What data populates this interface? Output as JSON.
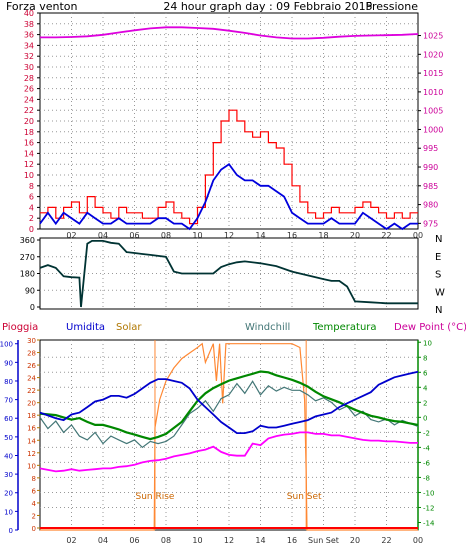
{
  "header": {
    "left_label": "Forza venton",
    "title": "24 hour graph day : 09 Febbraio 2015",
    "right_label": "Pressione"
  },
  "colors": {
    "wind": "#ff0000",
    "wind_avg": "#0000dd",
    "pressure": "#dd00dd",
    "direction": "#003333",
    "humidity": "#0000cc",
    "solar": "#ff8833",
    "windchill": "#447777",
    "temperature": "#008800",
    "dewpoint": "#ff00ff",
    "rain": "#ff0000",
    "grid": "#999999",
    "green_axis": "#008800",
    "blue_axis": "#0000cc",
    "red_axis": "#cc0033",
    "magenta_axis": "#cc0099"
  },
  "chart_data": [
    {
      "id": "wind-pressure",
      "type": "line",
      "x_ticks": [
        "02",
        "04",
        "06",
        "08",
        "10",
        "12",
        "14",
        "16",
        "18",
        "20",
        "22",
        "00"
      ],
      "y_left_ticks": [
        "0",
        "2",
        "4",
        "6",
        "8",
        "10",
        "12",
        "14",
        "16",
        "18",
        "20",
        "22",
        "24",
        "26",
        "28",
        "30",
        "32",
        "34",
        "36",
        "38",
        "40"
      ],
      "y_left_range": [
        0,
        40
      ],
      "y_right_ticks": [
        "975",
        "980",
        "985",
        "990",
        "995",
        "1000",
        "1005",
        "1010",
        "1015",
        "1020",
        "1025"
      ],
      "y_right_range": [
        973.5,
        1031
      ],
      "series": [
        {
          "key": "gust",
          "axis": "left",
          "x": [
            0,
            0.5,
            1,
            1.5,
            2,
            2.5,
            3,
            3.5,
            4,
            4.5,
            5,
            5.5,
            6,
            6.5,
            7,
            7.5,
            8,
            8.5,
            9,
            9.5,
            10,
            10.5,
            11,
            11.5,
            12,
            12.5,
            13,
            13.5,
            14,
            14.5,
            15,
            15.5,
            16,
            16.5,
            17,
            17.5,
            18,
            18.5,
            19,
            19.5,
            20,
            20.5,
            21,
            21.5,
            22,
            22.5,
            23,
            23.5,
            24
          ],
          "values": [
            3,
            4,
            2,
            4,
            5,
            3,
            6,
            4,
            3,
            2,
            4,
            3,
            3,
            2,
            2,
            4,
            5,
            3,
            2,
            1,
            4,
            10,
            16,
            20,
            22,
            20,
            18,
            17,
            18,
            16,
            15,
            12,
            8,
            5,
            3,
            2,
            3,
            4,
            3,
            3,
            4,
            5,
            4,
            3,
            2,
            3,
            2,
            3,
            3
          ]
        },
        {
          "key": "avg",
          "axis": "left",
          "x": [
            0,
            0.5,
            1,
            1.5,
            2,
            2.5,
            3,
            3.5,
            4,
            4.5,
            5,
            5.5,
            6,
            6.5,
            7,
            7.5,
            8,
            8.5,
            9,
            9.5,
            10,
            10.5,
            11,
            11.5,
            12,
            12.5,
            13,
            13.5,
            14,
            14.5,
            15,
            15.5,
            16,
            16.5,
            17,
            17.5,
            18,
            18.5,
            19,
            19.5,
            20,
            20.5,
            21,
            21.5,
            22,
            22.5,
            23,
            23.5,
            24
          ],
          "values": [
            1,
            3,
            1,
            3,
            2,
            1,
            3,
            2,
            1,
            1,
            2,
            1,
            1,
            1,
            1,
            2,
            2,
            1,
            1,
            0,
            2,
            5,
            9,
            11,
            12,
            10,
            9,
            9,
            8,
            8,
            7,
            6,
            3,
            2,
            1,
            1,
            1,
            2,
            1,
            1,
            1,
            3,
            2,
            1,
            0,
            1,
            0,
            1,
            1
          ]
        },
        {
          "key": "pressure",
          "axis": "right",
          "x": [
            0,
            1,
            2,
            3,
            4,
            5,
            6,
            7,
            8,
            9,
            10,
            11,
            12,
            13,
            14,
            15,
            16,
            17,
            18,
            19,
            20,
            21,
            22,
            23,
            24
          ],
          "values": [
            1024.5,
            1024.5,
            1024.6,
            1024.8,
            1025.2,
            1025.8,
            1026.4,
            1026.9,
            1027.2,
            1027.2,
            1027.0,
            1026.8,
            1026.3,
            1025.7,
            1025.0,
            1024.5,
            1024.2,
            1024.2,
            1024.4,
            1024.7,
            1024.9,
            1025.0,
            1025.1,
            1025.2,
            1025.4
          ]
        }
      ]
    },
    {
      "id": "wind-direction",
      "type": "line",
      "y_ticks": [
        "0",
        "90",
        "180",
        "270",
        "360"
      ],
      "y_range": [
        0,
        360
      ],
      "compass_labels": [
        "N",
        "W",
        "S",
        "E",
        "N"
      ],
      "series": [
        {
          "key": "direction",
          "x": [
            0,
            0.5,
            1,
            1.5,
            2,
            2.5,
            2.6,
            3,
            3.3,
            4,
            4.5,
            5,
            5.5,
            6,
            6.5,
            7,
            8,
            8.5,
            9,
            10,
            11,
            11.5,
            12,
            12.5,
            13,
            14,
            15,
            16,
            17,
            18,
            18.5,
            19,
            19.5,
            20,
            21,
            22,
            23,
            24
          ],
          "values": [
            210,
            225,
            210,
            165,
            160,
            158,
            0,
            340,
            355,
            355,
            345,
            340,
            295,
            290,
            285,
            280,
            270,
            190,
            180,
            180,
            180,
            215,
            230,
            240,
            245,
            235,
            220,
            190,
            170,
            150,
            140,
            140,
            110,
            30,
            25,
            20,
            20,
            20
          ]
        }
      ]
    },
    {
      "id": "thermo",
      "type": "line",
      "x_ticks": [
        "02",
        "04",
        "06",
        "08",
        "10",
        "12",
        "14",
        "16",
        "Sun Set",
        "20",
        "22",
        "00"
      ],
      "legend": [
        "Pioggia",
        "Umidita",
        "Solar",
        "Windchill",
        "Temperatura",
        "Dew Point (°C)"
      ],
      "annotations": [
        "Sun Rise",
        "Sun Set"
      ],
      "y_humidity_ticks": [
        "0",
        "10",
        "20",
        "30",
        "40",
        "50",
        "60",
        "70",
        "80",
        "90",
        "100"
      ],
      "y_solar_ticks": [
        "0",
        "2",
        "4",
        "6",
        "8",
        "10",
        "12",
        "14",
        "16",
        "18",
        "20",
        "22",
        "24",
        "26",
        "28",
        "30"
      ],
      "y_temp_ticks": [
        "-14",
        "-12",
        "-10",
        "-8",
        "-6",
        "-4",
        "-2",
        "0",
        "2",
        "4",
        "6",
        "8",
        "10"
      ],
      "y_humidity_range": [
        0,
        102
      ],
      "y_temp_range": [
        -15,
        10.3
      ],
      "sun_rise_x": 7.3,
      "sun_set_x": 16.9,
      "series": [
        {
          "key": "humidity",
          "axis": "humidity",
          "x": [
            0,
            1,
            1.5,
            2,
            2.5,
            3,
            3.5,
            4,
            4.5,
            5,
            5.5,
            6,
            6.5,
            7,
            7.5,
            8,
            8.5,
            9,
            9.5,
            10,
            10.5,
            11,
            11.5,
            12,
            12.5,
            13,
            13.5,
            14,
            14.5,
            15,
            15.5,
            16,
            16.5,
            17,
            17.5,
            18,
            18.5,
            19,
            19.5,
            20,
            20.5,
            21,
            21.5,
            22,
            22.5,
            23,
            23.5,
            24
          ],
          "values": [
            63,
            60,
            59,
            62,
            63,
            66,
            69,
            70,
            72,
            72,
            71,
            73,
            76,
            79,
            81,
            81,
            80,
            79,
            76,
            70,
            66,
            62,
            58,
            55,
            52,
            52,
            53,
            56,
            55,
            55,
            56,
            57,
            58,
            59,
            61,
            62,
            63,
            66,
            68,
            70,
            72,
            74,
            78,
            80,
            82,
            83,
            84,
            85
          ]
        },
        {
          "key": "temperature",
          "axis": "temp",
          "x": [
            0,
            1,
            1.5,
            2,
            2.5,
            3,
            3.5,
            4,
            4.5,
            5,
            5.5,
            6,
            6.5,
            7,
            7.5,
            8,
            8.5,
            9,
            9.5,
            10,
            10.5,
            11,
            11.5,
            12,
            12.5,
            13,
            13.5,
            14,
            14.5,
            15,
            15.5,
            16,
            16.5,
            17,
            17.5,
            18,
            18.5,
            19,
            19.5,
            20,
            20.5,
            21,
            21.5,
            22,
            22.5,
            23,
            23.5,
            24
          ],
          "values": [
            0.5,
            0.3,
            0,
            -0.3,
            -0.1,
            -0.6,
            -1.0,
            -1.0,
            -1.3,
            -1.6,
            -2.0,
            -2.3,
            -2.6,
            -2.9,
            -2.6,
            -2.2,
            -1.4,
            -0.6,
            0.8,
            2.2,
            3.2,
            3.9,
            4.4,
            4.9,
            5.2,
            5.5,
            5.8,
            6.1,
            6.0,
            5.6,
            5.3,
            5.0,
            4.6,
            4.1,
            3.4,
            2.8,
            2.4,
            2.0,
            1.5,
            1.0,
            0.6,
            0.2,
            0,
            -0.3,
            -0.5,
            -0.6,
            -0.8,
            -1.0
          ]
        },
        {
          "key": "windchill",
          "axis": "temp",
          "x": [
            0,
            0.5,
            1,
            1.5,
            2,
            2.5,
            3,
            3.5,
            4,
            4.5,
            5,
            5.5,
            6,
            6.5,
            7,
            7.5,
            8,
            8.5,
            9,
            9.5,
            10,
            10.5,
            11,
            11.5,
            12,
            12.5,
            13,
            13.5,
            14,
            14.5,
            15,
            15.5,
            16,
            16.5,
            17,
            17.5,
            18,
            18.5,
            19,
            19.5,
            20,
            20.5,
            21,
            21.5,
            22,
            22.5,
            23,
            23.5,
            24
          ],
          "values": [
            0,
            -1.5,
            -0.5,
            -2,
            -1,
            -2.5,
            -3,
            -2,
            -3.5,
            -2.5,
            -3,
            -3.5,
            -3,
            -4,
            -3.2,
            -3.5,
            -3.2,
            -2.5,
            -1,
            0.5,
            1.2,
            2.2,
            0.8,
            2.5,
            3.0,
            4.5,
            3.2,
            4.8,
            3.0,
            4.2,
            3.5,
            4.0,
            3.6,
            3.6,
            3.0,
            2.2,
            2.6,
            2.0,
            1.0,
            1.5,
            0.2,
            0.8,
            -0.3,
            -0.6,
            -0.2,
            -1.0,
            -0.4,
            -0.8,
            -1.2
          ]
        },
        {
          "key": "dewpoint",
          "axis": "temp",
          "x": [
            0,
            1,
            1.5,
            2,
            2.5,
            3,
            3.5,
            4,
            4.5,
            5,
            5.5,
            6,
            6.5,
            7,
            7.5,
            8,
            8.5,
            9,
            9.5,
            10,
            10.5,
            11,
            11.5,
            12,
            12.5,
            13,
            13.5,
            14,
            14.5,
            15,
            15.5,
            16,
            16.5,
            17,
            17.5,
            18,
            18.5,
            19,
            19.5,
            20,
            20.5,
            21,
            21.5,
            22,
            22.5,
            23,
            23.5,
            24
          ],
          "values": [
            -6.8,
            -7.2,
            -7.1,
            -6.9,
            -7.1,
            -7.0,
            -6.9,
            -6.8,
            -6.8,
            -6.6,
            -6.5,
            -6.3,
            -6.0,
            -5.8,
            -5.7,
            -5.5,
            -5.2,
            -5.0,
            -4.8,
            -4.5,
            -4.3,
            -3.9,
            -4.6,
            -5.0,
            -5.1,
            -5.1,
            -3.5,
            -3.7,
            -2.8,
            -2.5,
            -2.3,
            -2.2,
            -2.0,
            -2.0,
            -2.2,
            -2.2,
            -2.4,
            -2.4,
            -2.6,
            -2.8,
            -3.0,
            -3.1,
            -3.1,
            -3.2,
            -3.2,
            -3.3,
            -3.4,
            -3.4
          ]
        },
        {
          "key": "solar",
          "axis": "humidity",
          "x": [
            0,
            7.25,
            7.3,
            7.6,
            8,
            8.5,
            9,
            9.5,
            10,
            10.3,
            10.5,
            11,
            11.2,
            11.4,
            11.6,
            11.8,
            12,
            12.3,
            12.6,
            13,
            14,
            15,
            16,
            16.5,
            16.8,
            16.9,
            16.95,
            24
          ],
          "values": [
            0,
            0,
            55,
            70,
            80,
            87,
            92,
            95,
            98,
            100,
            90,
            100,
            80,
            100,
            68,
            100,
            100,
            100,
            100,
            100,
            100,
            100,
            100,
            98,
            70,
            30,
            0,
            0
          ]
        },
        {
          "key": "rain",
          "axis": "humidity",
          "x": [
            0,
            24
          ],
          "values": [
            0,
            0
          ]
        }
      ]
    }
  ]
}
